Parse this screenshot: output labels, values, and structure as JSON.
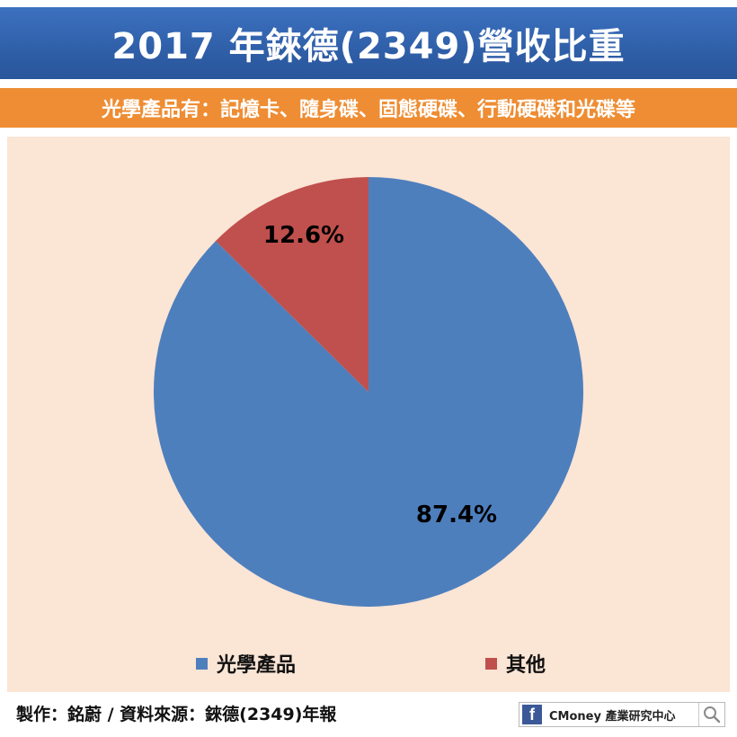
{
  "header": {
    "title": "2017 年錸德(2349)營收比重",
    "subtitle": "光學產品有：記憶卡、隨身碟、固態硬碟、行動硬碟和光碟等"
  },
  "chart_data": {
    "type": "pie",
    "slices": [
      {
        "label": "光學產品",
        "value": 87.4,
        "value_label": "87.4%",
        "color": "#4e7fbd"
      },
      {
        "label": "其他",
        "value": 12.6,
        "value_label": "12.6%",
        "color": "#c0504d"
      }
    ],
    "legend": "bottom",
    "start": "top, clockwise"
  },
  "footer": {
    "credit": "製作：銘蔚 / 資料來源：錸德(2349)年報",
    "brand_icon": "facebook-icon",
    "brand": "CMoney 產業研究中心",
    "search_icon": "magnifier-icon"
  },
  "colors": {
    "title_bg": "#2f5fa8",
    "subtitle_bg": "#ee8d33",
    "panel_bg": "#fbe5d5"
  }
}
